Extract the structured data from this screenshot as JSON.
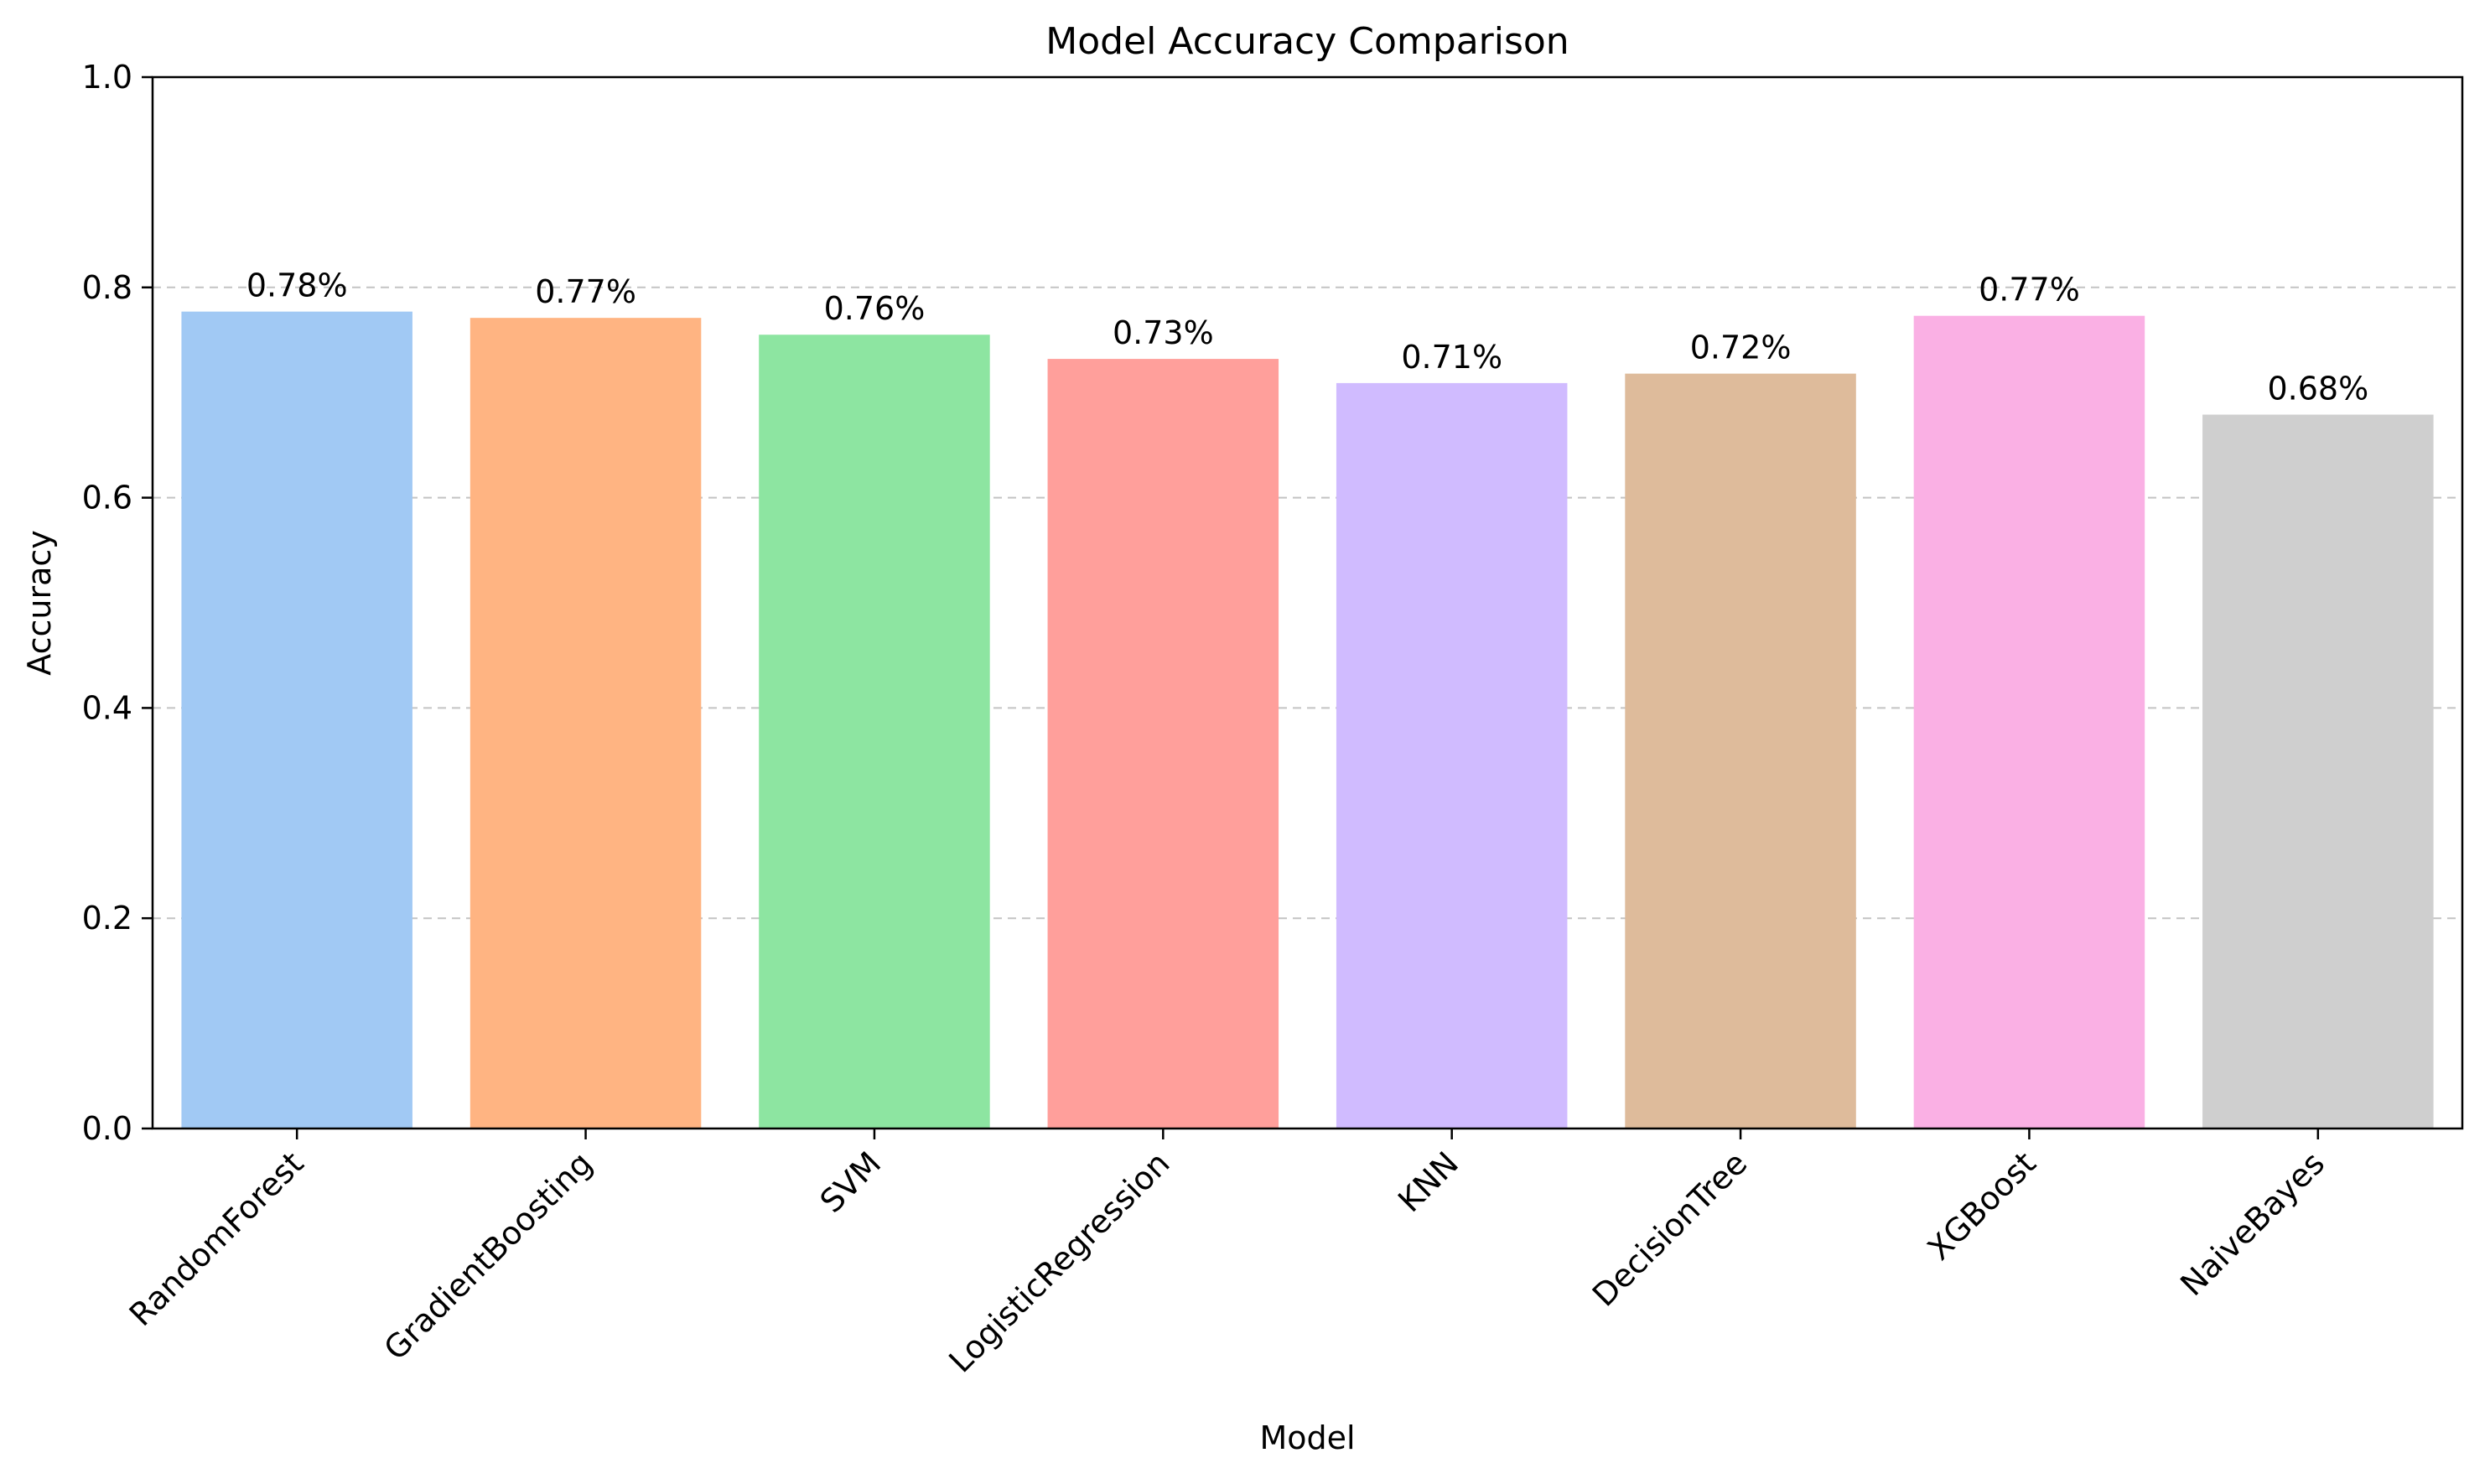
{
  "chart_data": {
    "type": "bar",
    "title": "Model Accuracy Comparison",
    "xlabel": "Model",
    "ylabel": "Accuracy",
    "ylim": [
      0,
      1.0
    ],
    "yticks": [
      "0.0",
      "0.2",
      "0.4",
      "0.6",
      "0.8",
      "1.0"
    ],
    "ytick_values": [
      0,
      0.2,
      0.4,
      0.6,
      0.8,
      1.0
    ],
    "grid": "y-dashed",
    "categories": [
      "RandomForest",
      "GradientBoosting",
      "SVM",
      "LogisticRegression",
      "KNN",
      "DecisionTree",
      "XGBoost",
      "NaiveBayes"
    ],
    "values": [
      0.777,
      0.771,
      0.755,
      0.732,
      0.709,
      0.718,
      0.773,
      0.679
    ],
    "data_labels": [
      "0.78%",
      "0.77%",
      "0.76%",
      "0.73%",
      "0.71%",
      "0.72%",
      "0.77%",
      "0.68%"
    ],
    "colors": [
      "#a1c9f4",
      "#ffb482",
      "#8de5a1",
      "#ff9f9b",
      "#d0bbff",
      "#debb9b",
      "#fab0e4",
      "#cfcfcf"
    ],
    "x_tick_rotation_deg": 45
  }
}
